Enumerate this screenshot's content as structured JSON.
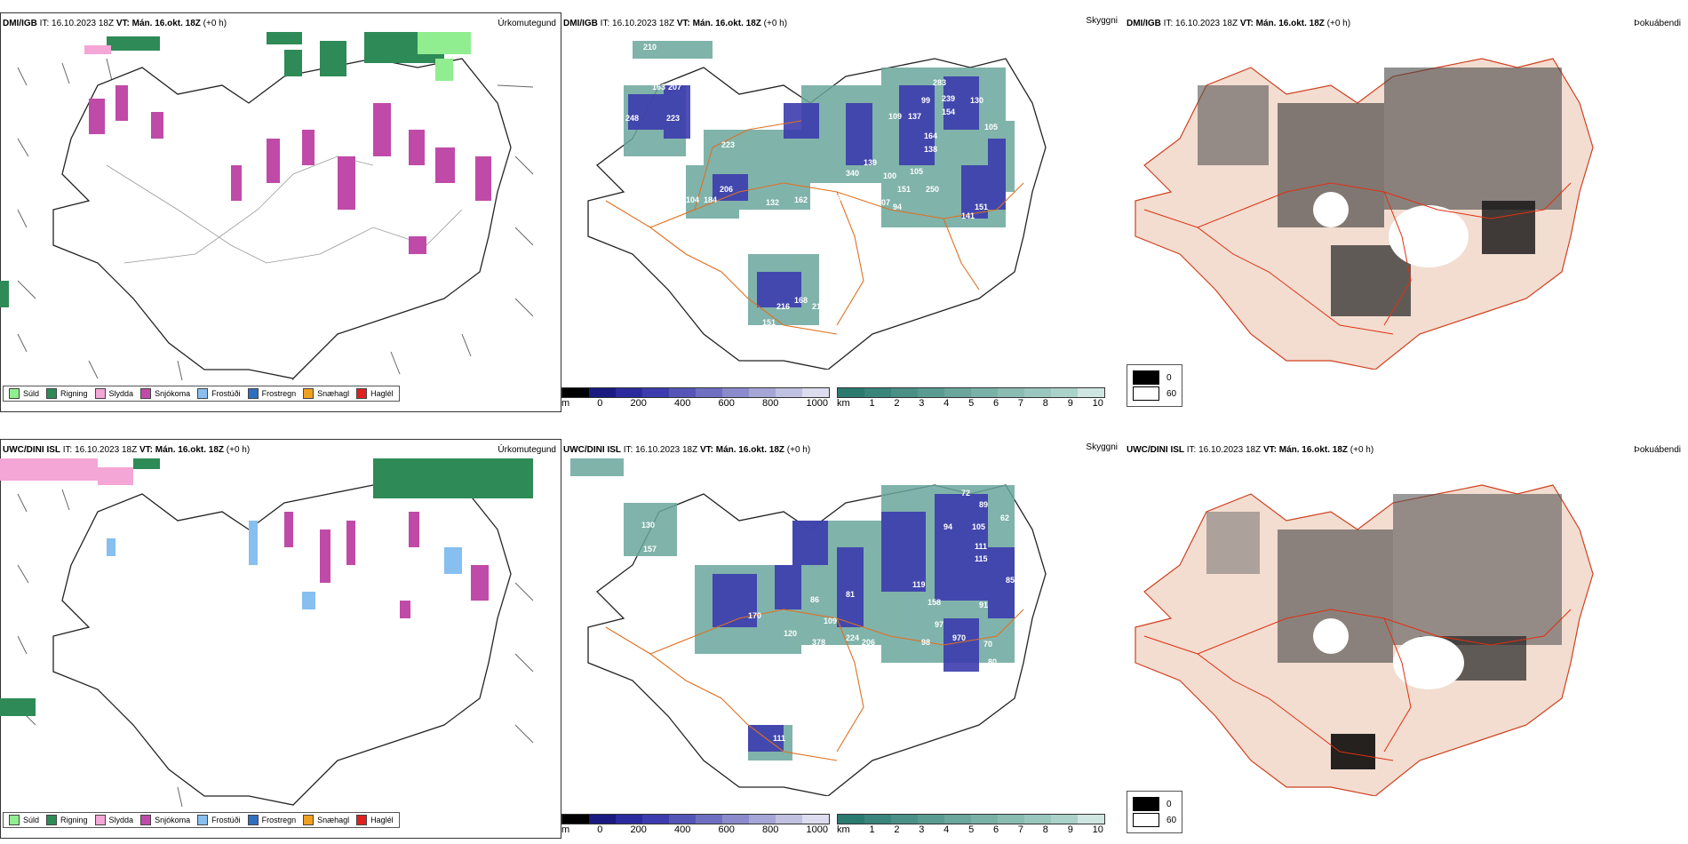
{
  "rows": [
    {
      "model": "DMI/IGB",
      "it_label": "IT:",
      "it_value": "16.10.2023 18Z",
      "vt_label": "VT:",
      "vt_value": "Mán. 16.okt. 18Z",
      "lead": "(+0 h)",
      "precip_title": "Úrkomutegund",
      "ceiling_title": "Skyggni",
      "fog_title": "Þokuábendi"
    },
    {
      "model": "UWC/DINI ISL",
      "it_label": "IT:",
      "it_value": "16.10.2023 18Z",
      "vt_label": "VT:",
      "vt_value": "Mán. 16.okt. 18Z",
      "lead": "(+0 h)",
      "precip_title": "Úrkomutegund",
      "ceiling_title": "Skyggni",
      "fog_title": "Þokuábendi"
    }
  ],
  "precip_types": [
    {
      "label": "Súld",
      "color": "#90ee90"
    },
    {
      "label": "Rigning",
      "color": "#2e8b57"
    },
    {
      "label": "Slydda",
      "color": "#f4a6d7"
    },
    {
      "label": "Snjókoma",
      "color": "#c04aa8"
    },
    {
      "label": "Frostúði",
      "color": "#87bff0"
    },
    {
      "label": "Frostregn",
      "color": "#2f6fc0"
    },
    {
      "label": "Snæhagl",
      "color": "#f0a020"
    },
    {
      "label": "Haglél",
      "color": "#e02020"
    }
  ],
  "ceiling_scale": {
    "unit": "m",
    "ticks": [
      "0",
      "200",
      "400",
      "600",
      "800",
      "1000"
    ],
    "colors": [
      "#000000",
      "#1a1a80",
      "#2b2b9e",
      "#3c3cae",
      "#5555b8",
      "#6f6fc2",
      "#8a8acc",
      "#a5a5d6",
      "#c0c0e0",
      "#dcdcee"
    ]
  },
  "visibility_scale": {
    "unit": "km",
    "ticks": [
      "1",
      "2",
      "3",
      "4",
      "5",
      "6",
      "7",
      "8",
      "9",
      "10"
    ],
    "colors": [
      "#2a7a70",
      "#3a857b",
      "#4a9086",
      "#5a9b91",
      "#6aa69c",
      "#7ab1a7",
      "#8abcb2",
      "#9ac7bd",
      "#aad2c8",
      "#cfe6e0"
    ]
  },
  "fog_scale": {
    "labels": [
      "0",
      "60"
    ],
    "colors": [
      "#000000",
      "#ffffff"
    ]
  },
  "ceiling_labels_top": [
    "210",
    "163",
    "207",
    "248",
    "223",
    "223",
    "155",
    "206",
    "132",
    "162",
    "104",
    "184",
    "832",
    "407",
    "94",
    "139",
    "151",
    "100",
    "340",
    "105",
    "250",
    "141",
    "151",
    "164",
    "138",
    "239",
    "154",
    "130",
    "99",
    "283",
    "137",
    "105",
    "109",
    "216",
    "168",
    "218",
    "151",
    "165"
  ],
  "ceiling_labels_bottom": [
    "130",
    "157",
    "170",
    "120",
    "378",
    "224",
    "206",
    "109",
    "86",
    "81",
    "119",
    "158",
    "97",
    "98",
    "970",
    "111",
    "80",
    "13",
    "70",
    "91",
    "85",
    "61",
    "58",
    "72",
    "89",
    "94",
    "105",
    "111",
    "115",
    "62",
    "111"
  ],
  "colors": {
    "rain": "#2e8b57",
    "drizzle": "#90ee90",
    "snow": "#c04aa8",
    "sleet": "#f4a6d7",
    "freezing_drizzle": "#87bff0",
    "roads": "#e07020",
    "fog_land": "#f2ddd0"
  }
}
